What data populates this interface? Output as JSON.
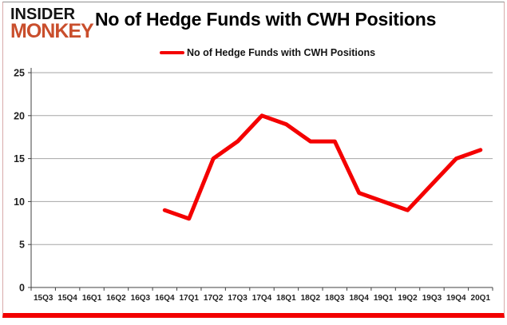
{
  "logo": {
    "line1": "INSIDER",
    "line2": "MONKEY",
    "line1_color": "#141414",
    "line2_color": "#c94e2c"
  },
  "header": {
    "title": "No of Hedge Funds with CWH Positions"
  },
  "legend": {
    "label": "No of Hedge Funds with CWH Positions",
    "swatch_color": "#f40000"
  },
  "chart_data": {
    "type": "line",
    "title": "No of Hedge Funds with CWH Positions",
    "categories": [
      "15Q3",
      "15Q4",
      "16Q1",
      "16Q2",
      "16Q3",
      "16Q4",
      "17Q1",
      "17Q2",
      "17Q3",
      "17Q4",
      "18Q1",
      "18Q2",
      "18Q3",
      "18Q4",
      "19Q1",
      "19Q2",
      "19Q3",
      "19Q4",
      "20Q1"
    ],
    "series": [
      {
        "name": "No of Hedge Funds with CWH Positions",
        "color": "#f40000",
        "values": [
          null,
          null,
          null,
          null,
          null,
          9,
          8,
          15,
          17,
          20,
          19,
          17,
          17,
          11,
          10,
          9,
          12,
          15,
          16
        ]
      }
    ],
    "ylim": [
      0,
      25
    ],
    "yticks": [
      0,
      5,
      10,
      15,
      20,
      25
    ],
    "grid": "horizontal",
    "gridline_color": "#a6a6a6",
    "axis_color": "#404040",
    "tick_label_color": "#1f1f1f",
    "legend_position": "top-center",
    "line_width": 5
  }
}
